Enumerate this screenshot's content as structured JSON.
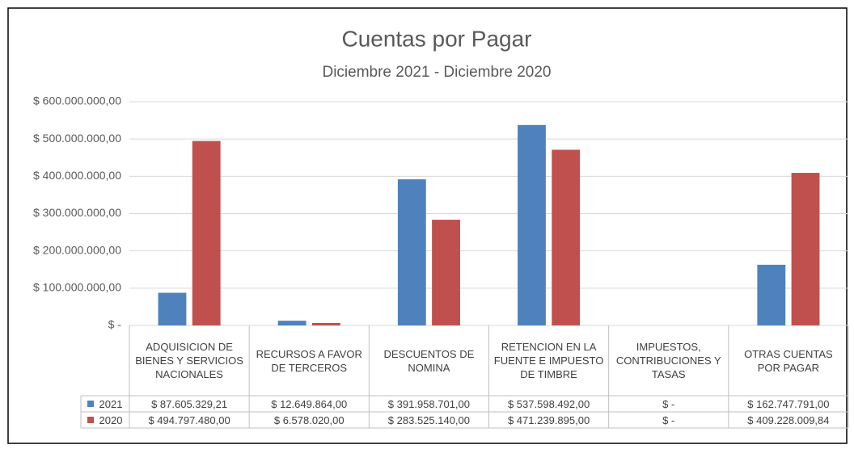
{
  "chart_data": {
    "type": "bar",
    "title": "Cuentas por Pagar",
    "subtitle": "Diciembre 2021 - Diciembre 2020",
    "categories": [
      "ADQUISICION DE BIENES Y SERVICIOS NACIONALES",
      "RECURSOS A FAVOR DE TERCEROS",
      "DESCUENTOS DE NOMINA",
      "RETENCION EN LA FUENTE E IMPUESTO DE TIMBRE",
      "IMPUESTOS, CONTRIBUCIONES Y TASAS",
      "OTRAS CUENTAS POR PAGAR"
    ],
    "series": [
      {
        "name": "2021",
        "color": "#4f81bd",
        "values": [
          87605329.21,
          12649864,
          391958701,
          537598492,
          0,
          162747791
        ],
        "value_labels": [
          "$ 87.605.329,21",
          "$ 12.649.864,00",
          "$ 391.958.701,00",
          "$ 537.598.492,00",
          "$ -",
          "$ 162.747.791,00"
        ]
      },
      {
        "name": "2020",
        "color": "#c0504d",
        "values": [
          494797480,
          6578020,
          283525140,
          471239895,
          0,
          409228009.84
        ],
        "value_labels": [
          "$ 494.797.480,00",
          "$ 6.578.020,00",
          "$ 283.525.140,00",
          "$ 471.239.895,00",
          "$ -",
          "$ 409.228.009,84"
        ]
      }
    ],
    "ylim": [
      0,
      600000000
    ],
    "yticks": [
      {
        "value": 0,
        "label": "$ -"
      },
      {
        "value": 100000000,
        "label": "$ 100.000.000,00"
      },
      {
        "value": 200000000,
        "label": "$ 200.000.000,00"
      },
      {
        "value": 300000000,
        "label": "$ 300.000.000,00"
      },
      {
        "value": 400000000,
        "label": "$ 400.000.000,00"
      },
      {
        "value": 500000000,
        "label": "$ 500.000.000,00"
      },
      {
        "value": 600000000,
        "label": "$ 600.000.000,00"
      }
    ],
    "grid": true
  }
}
